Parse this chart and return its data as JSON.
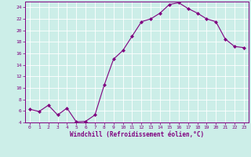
{
  "x": [
    0,
    1,
    2,
    3,
    4,
    5,
    6,
    7,
    8,
    9,
    10,
    11,
    12,
    13,
    14,
    15,
    16,
    17,
    18,
    19,
    20,
    21,
    22,
    23
  ],
  "y": [
    6.3,
    5.9,
    7.0,
    5.3,
    6.5,
    4.1,
    4.2,
    5.3,
    10.5,
    15.0,
    16.5,
    19.0,
    21.5,
    22.0,
    23.0,
    24.5,
    24.8,
    23.8,
    23.0,
    22.0,
    21.5,
    18.5,
    17.2,
    17.0
  ],
  "line_color": "#800080",
  "marker": "D",
  "marker_size": 2.0,
  "xlabel": "Windchill (Refroidissement éolien,°C)",
  "xlabel_color": "#800080",
  "bg_color": "#cceee8",
  "grid_color": "#ffffff",
  "tick_color": "#800080",
  "spine_color": "#800080",
  "ylim": [
    4,
    25
  ],
  "yticks": [
    4,
    6,
    8,
    10,
    12,
    14,
    16,
    18,
    20,
    22,
    24
  ],
  "xticks": [
    0,
    1,
    2,
    3,
    4,
    5,
    6,
    7,
    8,
    9,
    10,
    11,
    12,
    13,
    14,
    15,
    16,
    17,
    18,
    19,
    20,
    21,
    22,
    23
  ]
}
